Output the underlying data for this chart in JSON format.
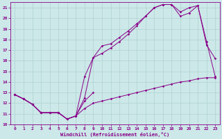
{
  "background_color": "#cce8e8",
  "line_color": "#880088",
  "grid_color": "#aacccc",
  "xlabel": "Windchill (Refroidissement éolien,°C)",
  "xlim": [
    -0.5,
    23.5
  ],
  "ylim": [
    10,
    21.5
  ],
  "xticks": [
    0,
    1,
    2,
    3,
    4,
    5,
    6,
    7,
    8,
    9,
    10,
    11,
    12,
    13,
    14,
    15,
    16,
    17,
    18,
    19,
    20,
    21,
    22,
    23
  ],
  "yticks": [
    10,
    11,
    12,
    13,
    14,
    15,
    16,
    17,
    18,
    19,
    20,
    21
  ],
  "series": [
    {
      "x": [
        0,
        1,
        2,
        3,
        4,
        5,
        6,
        7,
        8,
        9
      ],
      "y": [
        12.8,
        12.4,
        11.9,
        11.1,
        11.1,
        11.1,
        10.5,
        10.8,
        12.2,
        13.0
      ]
    },
    {
      "x": [
        0,
        1,
        2,
        3,
        4,
        5,
        6,
        7,
        8,
        9,
        10,
        11,
        12,
        13,
        14,
        15,
        16,
        17,
        18,
        19,
        20,
        21,
        22,
        23
      ],
      "y": [
        12.8,
        12.4,
        11.9,
        11.1,
        11.1,
        11.1,
        10.5,
        10.8,
        11.5,
        12.0,
        12.2,
        12.4,
        12.6,
        12.8,
        13.0,
        13.2,
        13.4,
        13.6,
        13.8,
        14.0,
        14.1,
        14.3,
        14.4,
        14.4
      ]
    },
    {
      "x": [
        0,
        1,
        2,
        3,
        4,
        5,
        6,
        7,
        8,
        9,
        10,
        11,
        12,
        13,
        14,
        15,
        16,
        17,
        18,
        19,
        20,
        21,
        22,
        23
      ],
      "y": [
        12.8,
        12.4,
        11.9,
        11.1,
        11.1,
        11.1,
        10.5,
        10.8,
        14.5,
        16.3,
        17.4,
        17.6,
        18.2,
        18.8,
        19.5,
        20.2,
        21.0,
        21.3,
        21.3,
        20.2,
        20.5,
        21.2,
        17.5,
        16.2
      ]
    },
    {
      "x": [
        0,
        1,
        2,
        3,
        4,
        5,
        6,
        7,
        8,
        9,
        10,
        11,
        12,
        13,
        14,
        15,
        16,
        17,
        18,
        19,
        20,
        21,
        22,
        23
      ],
      "y": [
        12.8,
        12.4,
        11.9,
        11.1,
        11.1,
        11.1,
        10.5,
        10.8,
        12.5,
        16.3,
        16.7,
        17.2,
        17.8,
        18.5,
        19.3,
        20.2,
        21.0,
        21.3,
        21.3,
        20.6,
        21.0,
        21.2,
        17.8,
        14.5
      ]
    }
  ]
}
